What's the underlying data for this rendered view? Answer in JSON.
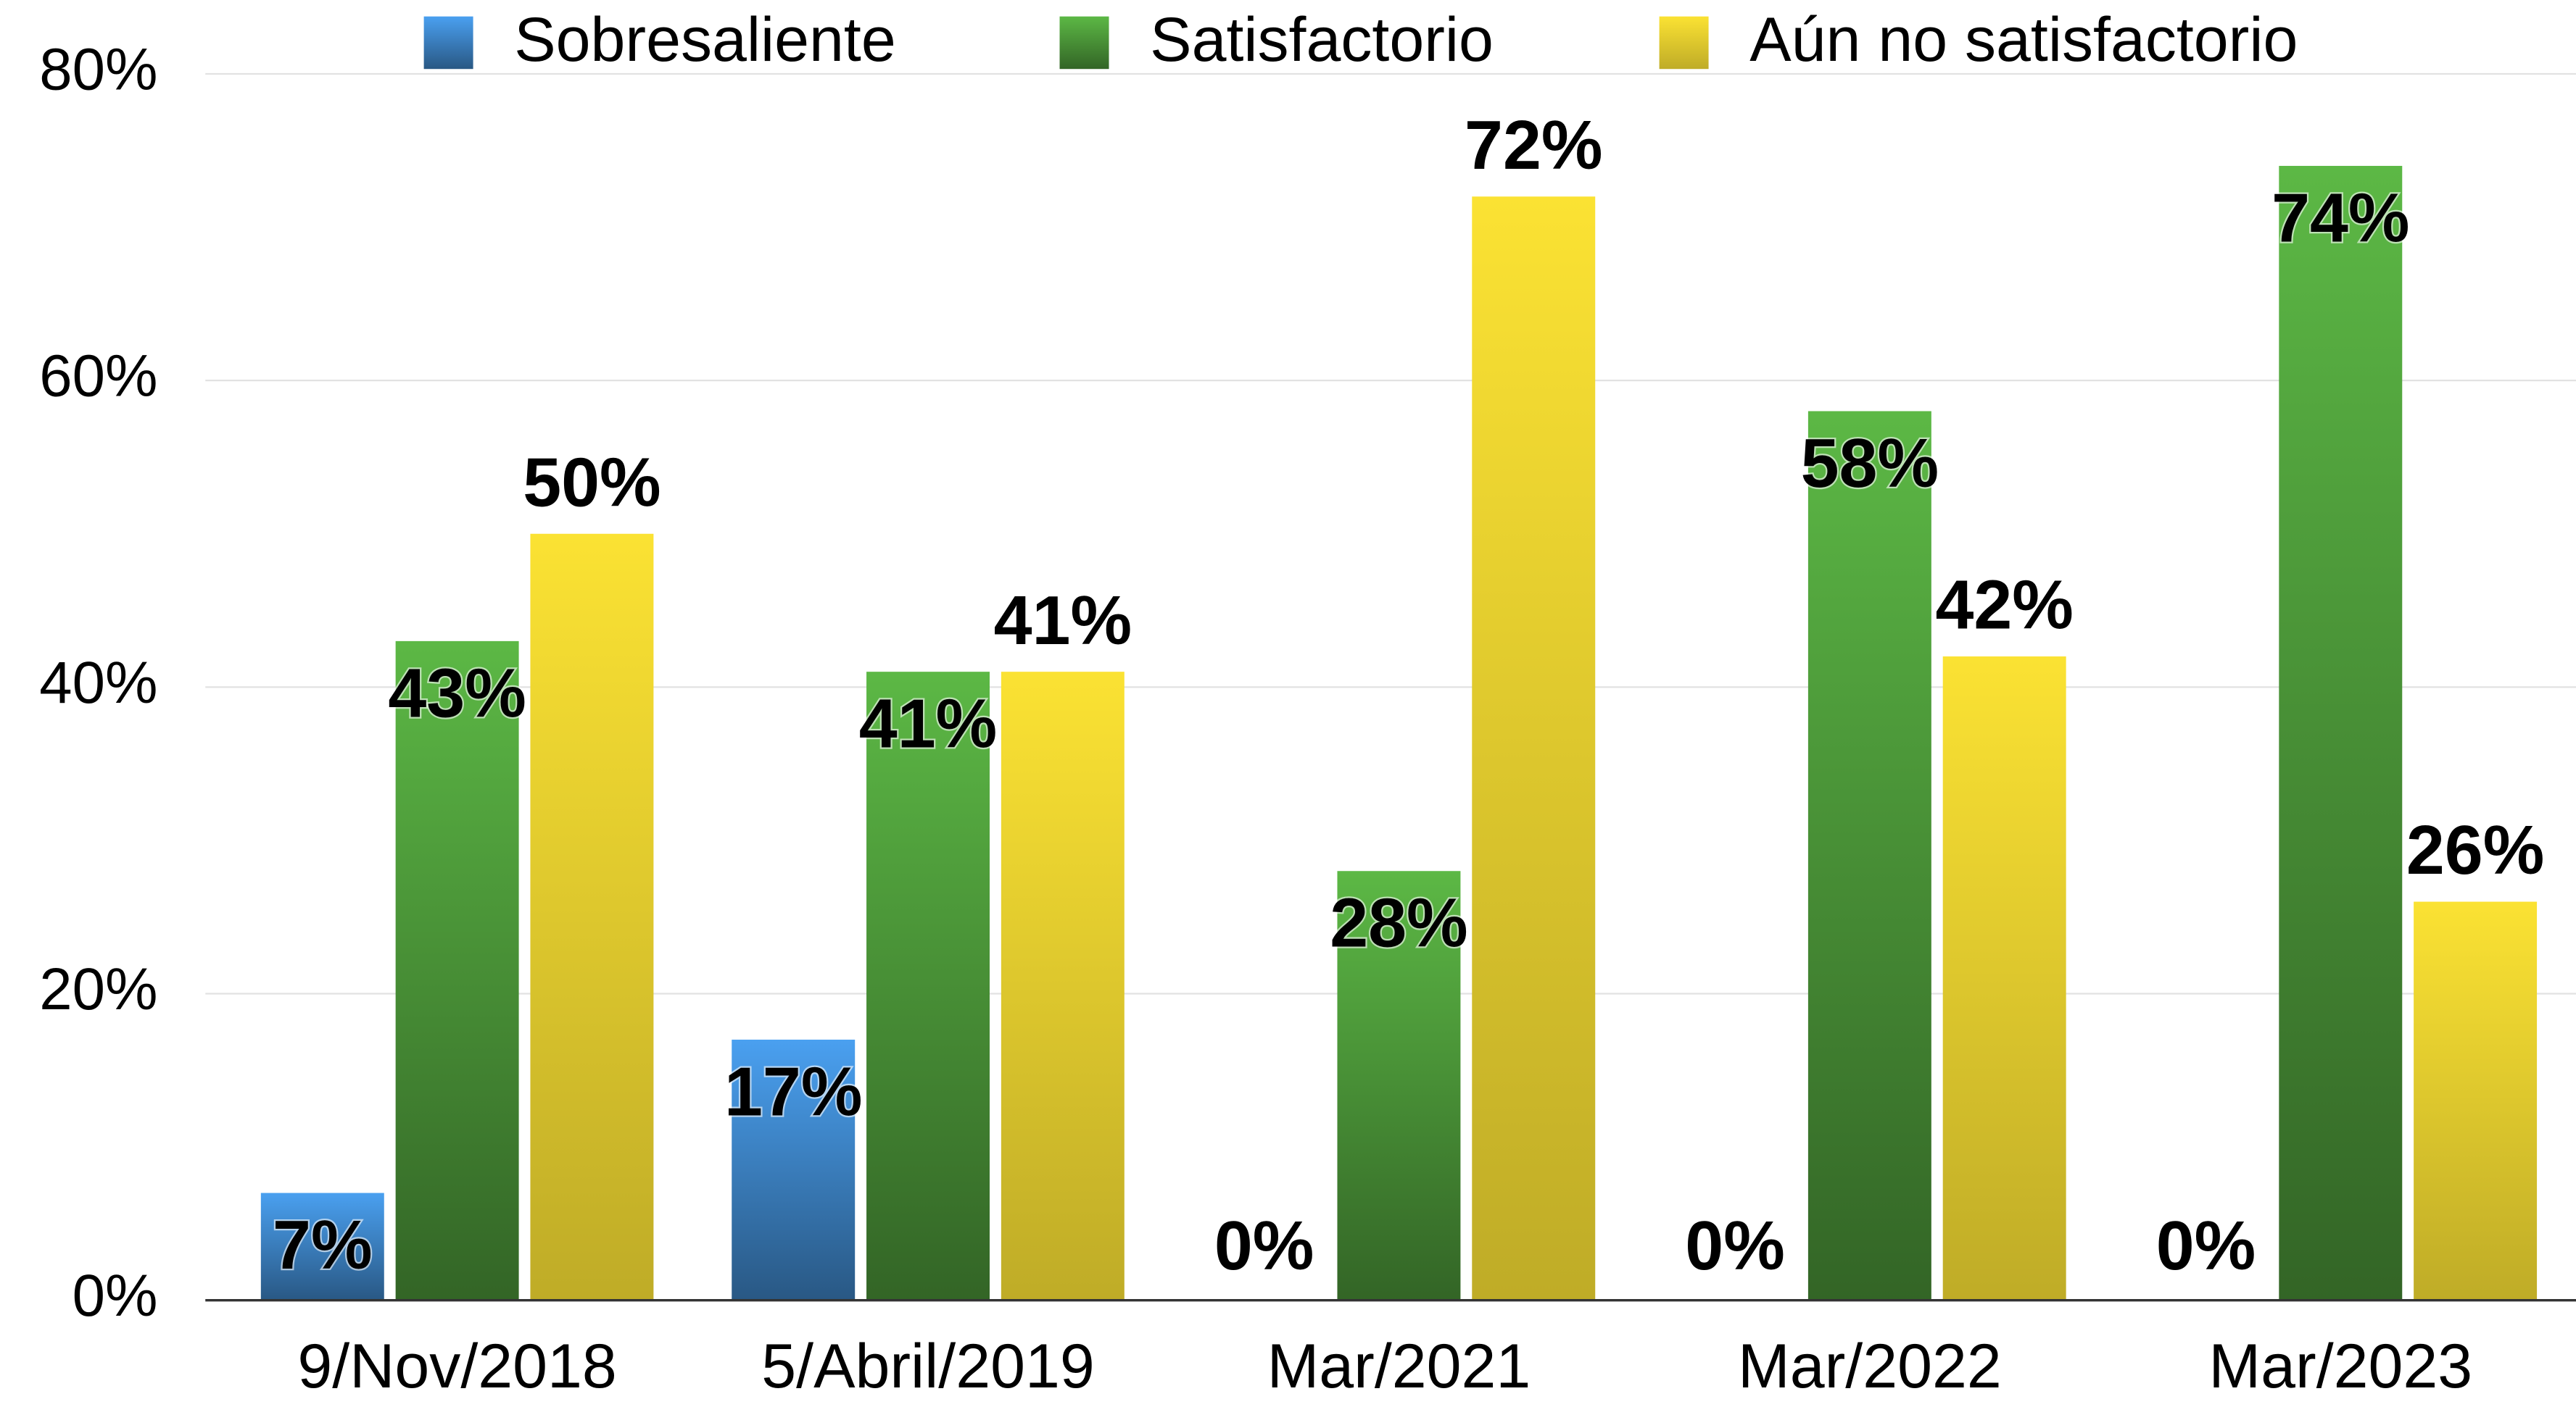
{
  "chart_data": {
    "type": "bar",
    "categories": [
      "9/Nov/2018",
      "5/Abril/2019",
      "Mar/2021",
      "Mar/2022",
      "Mar/2023"
    ],
    "series": [
      {
        "name": "Sobresaliente",
        "color": "#4aa0f0",
        "values": [
          7,
          17,
          0,
          0,
          0
        ],
        "value_labels": [
          "7%",
          "17%",
          "0%",
          "0%",
          "0%"
        ]
      },
      {
        "name": "Satisfactorio",
        "color": "#5cb845",
        "values": [
          43,
          41,
          28,
          58,
          74
        ],
        "value_labels": [
          "43%",
          "41%",
          "28%",
          "58%",
          "74%"
        ]
      },
      {
        "name": "Aún no satisfactorio",
        "color": "#fbe233",
        "values": [
          50,
          41,
          72,
          42,
          26
        ],
        "value_labels": [
          "50%",
          "41%",
          "72%",
          "42%",
          "26%"
        ]
      }
    ],
    "ylim": [
      0,
      80
    ],
    "yticks": [
      {
        "value": 0,
        "label": "0%"
      },
      {
        "value": 20,
        "label": "20%"
      },
      {
        "value": 40,
        "label": "40%"
      },
      {
        "value": 60,
        "label": "60%"
      },
      {
        "value": 80,
        "label": "80%"
      }
    ],
    "grid": true,
    "legend": "top"
  }
}
